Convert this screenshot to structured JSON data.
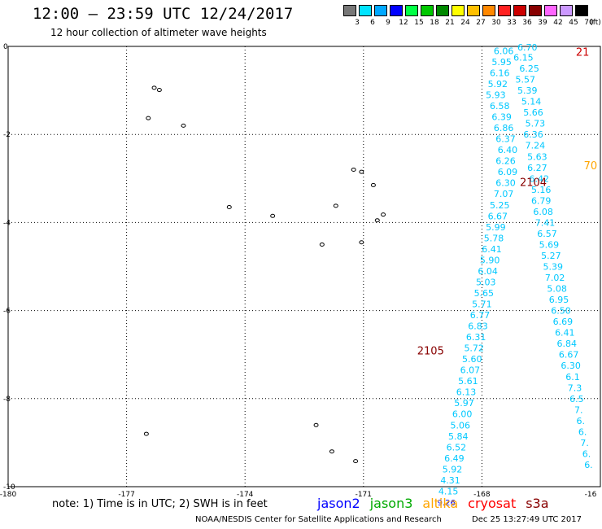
{
  "header": {
    "title": "12:00 – 23:59 UTC 12/24/2017",
    "subtitle": "12 hour collection of altimeter wave heights"
  },
  "scale": {
    "unit_label": "(ft)",
    "bins": [
      {
        "label": "3",
        "color": "#777777"
      },
      {
        "label": "6",
        "color": "#00e4ff"
      },
      {
        "label": "9",
        "color": "#00a8ff"
      },
      {
        "label": "12",
        "color": "#0000ff"
      },
      {
        "label": "15",
        "color": "#00ff44"
      },
      {
        "label": "18",
        "color": "#00c800"
      },
      {
        "label": "21",
        "color": "#008800"
      },
      {
        "label": "24",
        "color": "#ffff00"
      },
      {
        "label": "27",
        "color": "#ffc000"
      },
      {
        "label": "30",
        "color": "#ff8800"
      },
      {
        "label": "33",
        "color": "#ff2020"
      },
      {
        "label": "36",
        "color": "#cc0000"
      },
      {
        "label": "39",
        "color": "#880000"
      },
      {
        "label": "42",
        "color": "#ff66ff"
      },
      {
        "label": "45",
        "color": "#cc99ff"
      },
      {
        "label": "70",
        "color": "#000000"
      }
    ]
  },
  "map": {
    "lon_range": [
      -180,
      -165
    ],
    "lat_range": [
      -10,
      0
    ],
    "x_ticks": [
      "-180",
      "-177",
      "-174",
      "-171",
      "-168",
      "-16"
    ],
    "y_ticks": [
      "0",
      "-2",
      "-4",
      "-6",
      "-8",
      "-10"
    ],
    "islands": [
      {
        "lon": -176.3,
        "lat": -0.94
      },
      {
        "lon": -176.17,
        "lat": -0.99
      },
      {
        "lon": -176.45,
        "lat": -1.63
      },
      {
        "lon": -175.56,
        "lat": -1.8
      },
      {
        "lon": -171.25,
        "lat": -2.8
      },
      {
        "lon": -171.05,
        "lat": -2.85
      },
      {
        "lon": -170.75,
        "lat": -3.15
      },
      {
        "lon": -174.4,
        "lat": -3.65
      },
      {
        "lon": -173.3,
        "lat": -3.85
      },
      {
        "lon": -171.7,
        "lat": -3.62
      },
      {
        "lon": -170.5,
        "lat": -3.82
      },
      {
        "lon": -170.65,
        "lat": -3.95
      },
      {
        "lon": -172.05,
        "lat": -4.5
      },
      {
        "lon": -171.05,
        "lat": -4.45
      },
      {
        "lon": -176.5,
        "lat": -8.8
      },
      {
        "lon": -172.2,
        "lat": -8.6
      },
      {
        "lon": -171.8,
        "lat": -9.2
      },
      {
        "lon": -171.2,
        "lat": -9.42
      }
    ],
    "track_a": {
      "color": "#00c8ff",
      "points": [
        {
          "lon": -167.45,
          "lat": -0.1,
          "v": "6.06"
        },
        {
          "lon": -167.5,
          "lat": -0.35,
          "v": "5.95"
        },
        {
          "lon": -167.55,
          "lat": -0.6,
          "v": "6.16"
        },
        {
          "lon": -167.6,
          "lat": -0.85,
          "v": "5.92"
        },
        {
          "lon": -167.65,
          "lat": -1.1,
          "v": "5.93"
        },
        {
          "lon": -167.55,
          "lat": -1.35,
          "v": "6.58"
        },
        {
          "lon": -167.5,
          "lat": -1.6,
          "v": "6.39"
        },
        {
          "lon": -167.45,
          "lat": -1.85,
          "v": "6.86"
        },
        {
          "lon": -167.4,
          "lat": -2.1,
          "v": "6.37"
        },
        {
          "lon": -167.35,
          "lat": -2.35,
          "v": "6.40"
        },
        {
          "lon": -167.4,
          "lat": -2.6,
          "v": "6.26"
        },
        {
          "lon": -167.35,
          "lat": -2.85,
          "v": "6.09"
        },
        {
          "lon": -167.4,
          "lat": -3.1,
          "v": "6.30"
        },
        {
          "lon": -167.45,
          "lat": -3.35,
          "v": "7.07"
        },
        {
          "lon": -167.55,
          "lat": -3.6,
          "v": "5.25"
        },
        {
          "lon": -167.6,
          "lat": -3.85,
          "v": "6.67"
        },
        {
          "lon": -167.65,
          "lat": -4.1,
          "v": "5.99"
        },
        {
          "lon": -167.7,
          "lat": -4.35,
          "v": "5.78"
        },
        {
          "lon": -167.75,
          "lat": -4.6,
          "v": "6.41"
        },
        {
          "lon": -167.8,
          "lat": -4.85,
          "v": "5.90"
        },
        {
          "lon": -167.85,
          "lat": -5.1,
          "v": "6.04"
        },
        {
          "lon": -167.9,
          "lat": -5.35,
          "v": "5.03"
        },
        {
          "lon": -167.95,
          "lat": -5.6,
          "v": "5.65"
        },
        {
          "lon": -168.0,
          "lat": -5.85,
          "v": "5.71"
        },
        {
          "lon": -168.05,
          "lat": -6.1,
          "v": "6.77"
        },
        {
          "lon": -168.1,
          "lat": -6.35,
          "v": "6.83"
        },
        {
          "lon": -168.15,
          "lat": -6.6,
          "v": "6.31"
        },
        {
          "lon": -168.2,
          "lat": -6.85,
          "v": "5.72"
        },
        {
          "lon": -168.25,
          "lat": -7.1,
          "v": "5.60"
        },
        {
          "lon": -168.3,
          "lat": -7.35,
          "v": "6.07"
        },
        {
          "lon": -168.35,
          "lat": -7.6,
          "v": "5.61"
        },
        {
          "lon": -168.4,
          "lat": -7.85,
          "v": "6.13"
        },
        {
          "lon": -168.45,
          "lat": -8.1,
          "v": "5.97"
        },
        {
          "lon": -168.5,
          "lat": -8.35,
          "v": "6.00"
        },
        {
          "lon": -168.55,
          "lat": -8.6,
          "v": "5.06"
        },
        {
          "lon": -168.6,
          "lat": -8.85,
          "v": "5.84"
        },
        {
          "lon": -168.65,
          "lat": -9.1,
          "v": "6.52"
        },
        {
          "lon": -168.7,
          "lat": -9.35,
          "v": "6.49"
        },
        {
          "lon": -168.75,
          "lat": -9.6,
          "v": "5.92"
        },
        {
          "lon": -168.8,
          "lat": -9.85,
          "v": "4.31"
        },
        {
          "lon": -168.85,
          "lat": -10.1,
          "v": "4.15"
        }
      ]
    },
    "track_a_last": {
      "lon": -168.9,
      "lat": -10.35,
      "v": "9.26",
      "color": "#0000ff"
    },
    "track_b": {
      "color": "#00c8ff",
      "points": [
        {
          "lon": -166.85,
          "lat": -0.02,
          "v": "6.70"
        },
        {
          "lon": -166.95,
          "lat": -0.25,
          "v": "6.15"
        },
        {
          "lon": -166.8,
          "lat": -0.5,
          "v": "6.25"
        },
        {
          "lon": -166.9,
          "lat": -0.75,
          "v": "5.57"
        },
        {
          "lon": -166.85,
          "lat": -1.0,
          "v": "5.39"
        },
        {
          "lon": -166.75,
          "lat": -1.25,
          "v": "5.14"
        },
        {
          "lon": -166.7,
          "lat": -1.5,
          "v": "5.66"
        },
        {
          "lon": -166.65,
          "lat": -1.75,
          "v": "5.73"
        },
        {
          "lon": -166.7,
          "lat": -2.0,
          "v": "6.36"
        },
        {
          "lon": -166.65,
          "lat": -2.25,
          "v": "7.24"
        },
        {
          "lon": -166.6,
          "lat": -2.5,
          "v": "5.63"
        },
        {
          "lon": -166.6,
          "lat": -2.75,
          "v": "6.27"
        },
        {
          "lon": -166.55,
          "lat": -3.0,
          "v": "6.42"
        },
        {
          "lon": -166.5,
          "lat": -3.25,
          "v": "5.16"
        },
        {
          "lon": -166.5,
          "lat": -3.5,
          "v": "6.79"
        },
        {
          "lon": -166.45,
          "lat": -3.75,
          "v": "6.08"
        },
        {
          "lon": -166.4,
          "lat": -4.0,
          "v": "7.41"
        },
        {
          "lon": -166.35,
          "lat": -4.25,
          "v": "6.57"
        },
        {
          "lon": -166.3,
          "lat": -4.5,
          "v": "5.69"
        },
        {
          "lon": -166.25,
          "lat": -4.75,
          "v": "5.27"
        },
        {
          "lon": -166.2,
          "lat": -5.0,
          "v": "5.39"
        },
        {
          "lon": -166.15,
          "lat": -5.25,
          "v": "7.02"
        },
        {
          "lon": -166.1,
          "lat": -5.5,
          "v": "5.08"
        },
        {
          "lon": -166.05,
          "lat": -5.75,
          "v": "6.95"
        },
        {
          "lon": -166.0,
          "lat": -6.0,
          "v": "6.50"
        },
        {
          "lon": -165.95,
          "lat": -6.25,
          "v": "6.69"
        },
        {
          "lon": -165.9,
          "lat": -6.5,
          "v": "6.41"
        },
        {
          "lon": -165.85,
          "lat": -6.75,
          "v": "6.84"
        },
        {
          "lon": -165.8,
          "lat": -7.0,
          "v": "6.67"
        },
        {
          "lon": -165.75,
          "lat": -7.25,
          "v": "6.30"
        },
        {
          "lon": -165.7,
          "lat": -7.5,
          "v": "6.1"
        },
        {
          "lon": -165.65,
          "lat": -7.75,
          "v": "7.3"
        },
        {
          "lon": -165.6,
          "lat": -8.0,
          "v": "6.5"
        },
        {
          "lon": -165.55,
          "lat": -8.25,
          "v": "7."
        },
        {
          "lon": -165.5,
          "lat": -8.5,
          "v": "6."
        },
        {
          "lon": -165.45,
          "lat": -8.75,
          "v": "6."
        },
        {
          "lon": -165.4,
          "lat": -9.0,
          "v": "7."
        },
        {
          "lon": -165.35,
          "lat": -9.25,
          "v": "6."
        },
        {
          "lon": -165.3,
          "lat": -9.5,
          "v": "6."
        }
      ]
    },
    "time_labels": [
      {
        "text": "21",
        "lon": -165.45,
        "lat": -0.12,
        "color": "#cc0000"
      },
      {
        "text": "70",
        "lon": -165.25,
        "lat": -2.7,
        "color": "#ffa500"
      },
      {
        "text": "2104",
        "lon": -166.7,
        "lat": -3.08,
        "color": "#880000"
      },
      {
        "text": "2105",
        "lon": -169.3,
        "lat": -6.9,
        "color": "#880000"
      }
    ],
    "missions": [
      {
        "label": "jason2",
        "color": "#0000ff"
      },
      {
        "label": "jason3",
        "color": "#00aa00"
      },
      {
        "label": "altika",
        "color": "#ffa500"
      },
      {
        "label": "cryosat",
        "color": "#ff0000"
      },
      {
        "label": "s3a",
        "color": "#880000"
      }
    ]
  },
  "footer": {
    "note": "note:  1) Time is in UTC;  2) SWH is in feet",
    "credit": "NOAA/NESDIS Center for Satellite Applications and Research",
    "stamp": "Dec 25 13:27:49 UTC 2017"
  }
}
